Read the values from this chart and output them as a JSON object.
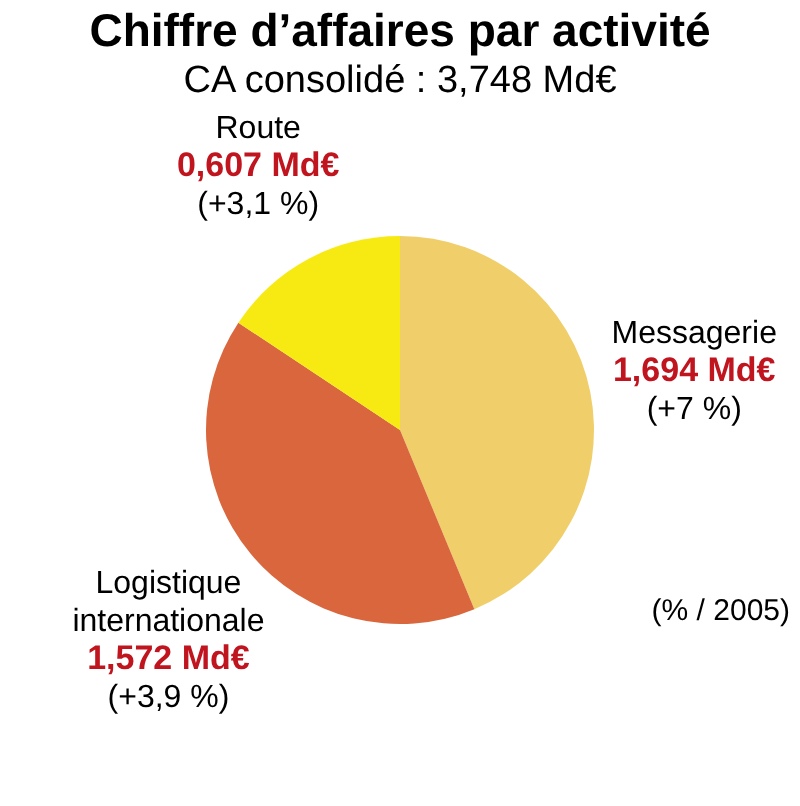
{
  "chart_data": {
    "type": "pie",
    "title": "Chiffre d’affaires par activité",
    "subtitle": "CA consolidé : 3,748 Md€",
    "categories": [
      "Messagerie",
      "Logistique internationale",
      "Route"
    ],
    "values": [
      1.694,
      1.572,
      0.607
    ],
    "colors": [
      "#f0cf6a",
      "#d9663c",
      "#f7ea12"
    ],
    "value_labels": [
      "1,694 Md€",
      "1,572 Md€",
      "0,607 Md€"
    ],
    "annotations": [
      "(+7 %)",
      "(+3,9 %)",
      "(+3,1 %)",
      "(% / 2005)"
    ]
  }
}
